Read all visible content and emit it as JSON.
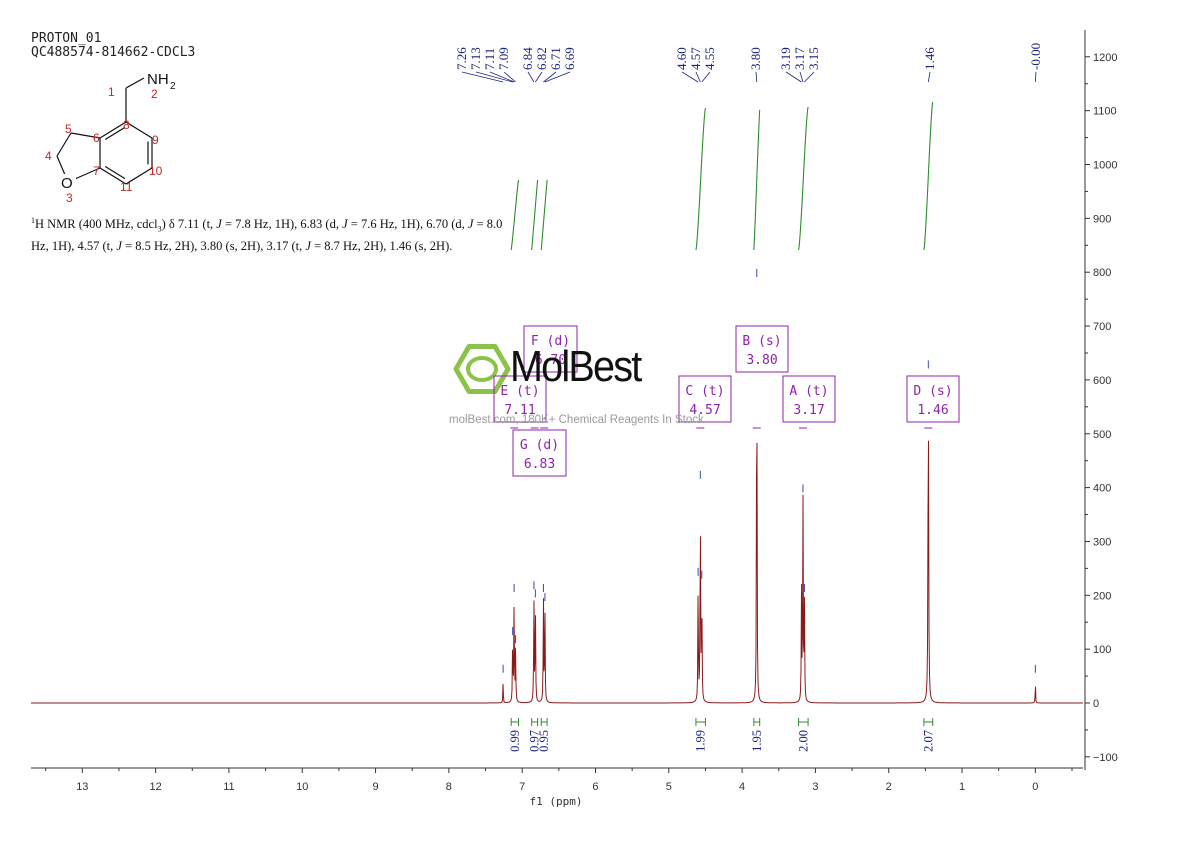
{
  "header": {
    "title": "PROTON_01",
    "sample_id": "QC488574-814662-CDCL3"
  },
  "structure": {
    "substituent": "NH2",
    "atom_labels": [
      "1",
      "2",
      "3",
      "4",
      "5",
      "6",
      "7",
      "8",
      "9",
      "10",
      "11"
    ],
    "heteroatom": "O"
  },
  "summary": {
    "line1_pre": "H NMR (400 MHz, cdcl",
    "line1_sub": "3",
    "line1_mid": ") δ 7.11 (t, ",
    "line1_j1": "J",
    "line1_rest1": " = 7.8 Hz, 1H), 6.83 (d, ",
    "line1_j2": "J",
    "line1_rest2": " = 7.6 Hz, 1H), 6.70 (d, ",
    "line1_j3": "J",
    "line1_rest3": " = 8.0",
    "line2_pre": "Hz, 1H), 4.57 (t, ",
    "line2_j1": "J",
    "line2_rest1": " = 8.5 Hz, 2H), 3.80 (s, 2H), 3.17 (t, ",
    "line2_j2": "J",
    "line2_rest2": " = 8.7 Hz, 2H), 1.46 (s, 2H).",
    "superscript": "1"
  },
  "watermark": {
    "brand": "MolBest",
    "tagline": "molBest.com, 180K+ Chemical Reagents In Stock."
  },
  "colors": {
    "spectrum": "#8b1a1a",
    "integral": "#2e8b2e",
    "peak_label": "#1a237e",
    "multiplet_box": "#8e24aa",
    "axis": "#333333"
  },
  "chart_data": {
    "type": "line",
    "xlabel": "f1 (ppm)",
    "xlim": [
      13.7,
      -0.65
    ],
    "ylim": [
      -120,
      1240
    ],
    "x_ticks": [
      13,
      12,
      11,
      10,
      9,
      8,
      7,
      6,
      5,
      4,
      3,
      2,
      1,
      0
    ],
    "y_ticks": [
      -100,
      0,
      100,
      200,
      300,
      400,
      500,
      600,
      700,
      800,
      900,
      1000,
      1100,
      1200
    ],
    "peak_labels": [
      "7.26",
      "7.13",
      "7.11",
      "7.09",
      "6.84",
      "6.82",
      "6.71",
      "6.69",
      "4.60",
      "4.57",
      "4.55",
      "3.80",
      "3.19",
      "3.17",
      "3.15",
      "1.46",
      "-0.00"
    ],
    "label_group_targets": [
      [
        7.26,
        7.13,
        7.11,
        7.09
      ],
      [
        6.84,
        6.82
      ],
      [
        6.71,
        6.69
      ],
      [
        4.6,
        4.57,
        4.55
      ],
      [
        3.8
      ],
      [
        3.19,
        3.17,
        3.15
      ],
      [
        1.46
      ],
      [
        0.0
      ]
    ],
    "peaks": [
      {
        "shift": 7.26,
        "height": 45,
        "width": 0.003
      },
      {
        "shift": 7.13,
        "height": 115,
        "width": 0.004
      },
      {
        "shift": 7.11,
        "height": 195,
        "width": 0.004
      },
      {
        "shift": 7.09,
        "height": 100,
        "width": 0.004
      },
      {
        "shift": 6.84,
        "height": 200,
        "width": 0.004
      },
      {
        "shift": 6.82,
        "height": 185,
        "width": 0.004
      },
      {
        "shift": 6.71,
        "height": 195,
        "width": 0.004
      },
      {
        "shift": 6.69,
        "height": 178,
        "width": 0.004
      },
      {
        "shift": 4.6,
        "height": 225,
        "width": 0.004
      },
      {
        "shift": 4.57,
        "height": 405,
        "width": 0.004
      },
      {
        "shift": 4.55,
        "height": 220,
        "width": 0.004
      },
      {
        "shift": 3.8,
        "height": 780,
        "width": 0.004
      },
      {
        "shift": 3.19,
        "height": 195,
        "width": 0.004
      },
      {
        "shift": 3.17,
        "height": 380,
        "width": 0.004
      },
      {
        "shift": 3.15,
        "height": 195,
        "width": 0.004
      },
      {
        "shift": 1.46,
        "height": 610,
        "width": 0.005
      },
      {
        "shift": 0.0,
        "height": 45,
        "width": 0.003
      }
    ],
    "integrals": [
      {
        "from": 7.15,
        "to": 7.05,
        "value": "0.99"
      },
      {
        "from": 6.87,
        "to": 6.79,
        "value": "0.97"
      },
      {
        "from": 6.74,
        "to": 6.66,
        "value": "0.95"
      },
      {
        "from": 4.63,
        "to": 4.5,
        "value": "1.99"
      },
      {
        "from": 3.84,
        "to": 3.76,
        "value": "1.95"
      },
      {
        "from": 3.23,
        "to": 3.1,
        "value": "2.00"
      },
      {
        "from": 1.52,
        "to": 1.4,
        "value": "2.07"
      }
    ],
    "multiplets": [
      {
        "letter": "F",
        "mult": "(d)",
        "shift": "6.70",
        "anchor": 6.7
      },
      {
        "letter": "B",
        "mult": "(s)",
        "shift": "3.80",
        "anchor": 3.8
      },
      {
        "letter": "E",
        "mult": "(t)",
        "shift": "7.11",
        "anchor": 7.11
      },
      {
        "letter": "C",
        "mult": "(t)",
        "shift": "4.57",
        "anchor": 4.57
      },
      {
        "letter": "A",
        "mult": "(t)",
        "shift": "3.17",
        "anchor": 3.17
      },
      {
        "letter": "D",
        "mult": "(s)",
        "shift": "1.46",
        "anchor": 1.46
      },
      {
        "letter": "G",
        "mult": "(d)",
        "shift": "6.83",
        "anchor": 6.83
      }
    ],
    "grid": false
  }
}
